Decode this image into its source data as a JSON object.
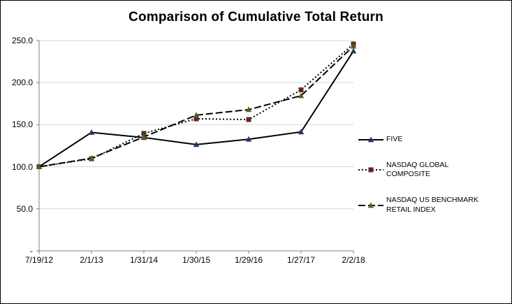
{
  "chart_data": {
    "type": "line",
    "title": "Comparison of Cumulative Total Return",
    "categories": [
      "7/19/12",
      "2/1/13",
      "1/31/14",
      "1/30/15",
      "1/29/16",
      "1/27/17",
      "2/2/18"
    ],
    "series": [
      {
        "name": "FIVE",
        "values": [
          100.0,
          140.8,
          134.7,
          126.4,
          132.7,
          141.4,
          237.5
        ],
        "line_style": "solid",
        "marker": "triangle",
        "marker_color": "#1f3864",
        "line_color": "#000000"
      },
      {
        "name": "NASDAQ GLOBAL COMPOSITE",
        "values": [
          100.0,
          109.5,
          139.6,
          157.0,
          156.1,
          191.4,
          245.9
        ],
        "line_style": "dotted",
        "marker": "square",
        "marker_color": "#632523",
        "line_color": "#000000"
      },
      {
        "name": "NASDAQ US BENCHMARK RETAIL INDEX",
        "values": [
          100.0,
          110.2,
          135.4,
          161.3,
          167.9,
          184.4,
          243.3
        ],
        "line_style": "dashed",
        "marker": "triangle",
        "marker_color": "#4f6228",
        "line_color": "#000000"
      }
    ],
    "ylim": [
      0,
      250
    ],
    "y_ticks": [
      0,
      50,
      100,
      150,
      200,
      250
    ],
    "y_tick_labels": [
      "-",
      "50.0",
      "100.0",
      "150.0",
      "200.0",
      "250.0"
    ],
    "grid": true,
    "gridline_color": "#d6d6d6",
    "axis_color": "#7f7f7f",
    "legend_position": "right"
  }
}
